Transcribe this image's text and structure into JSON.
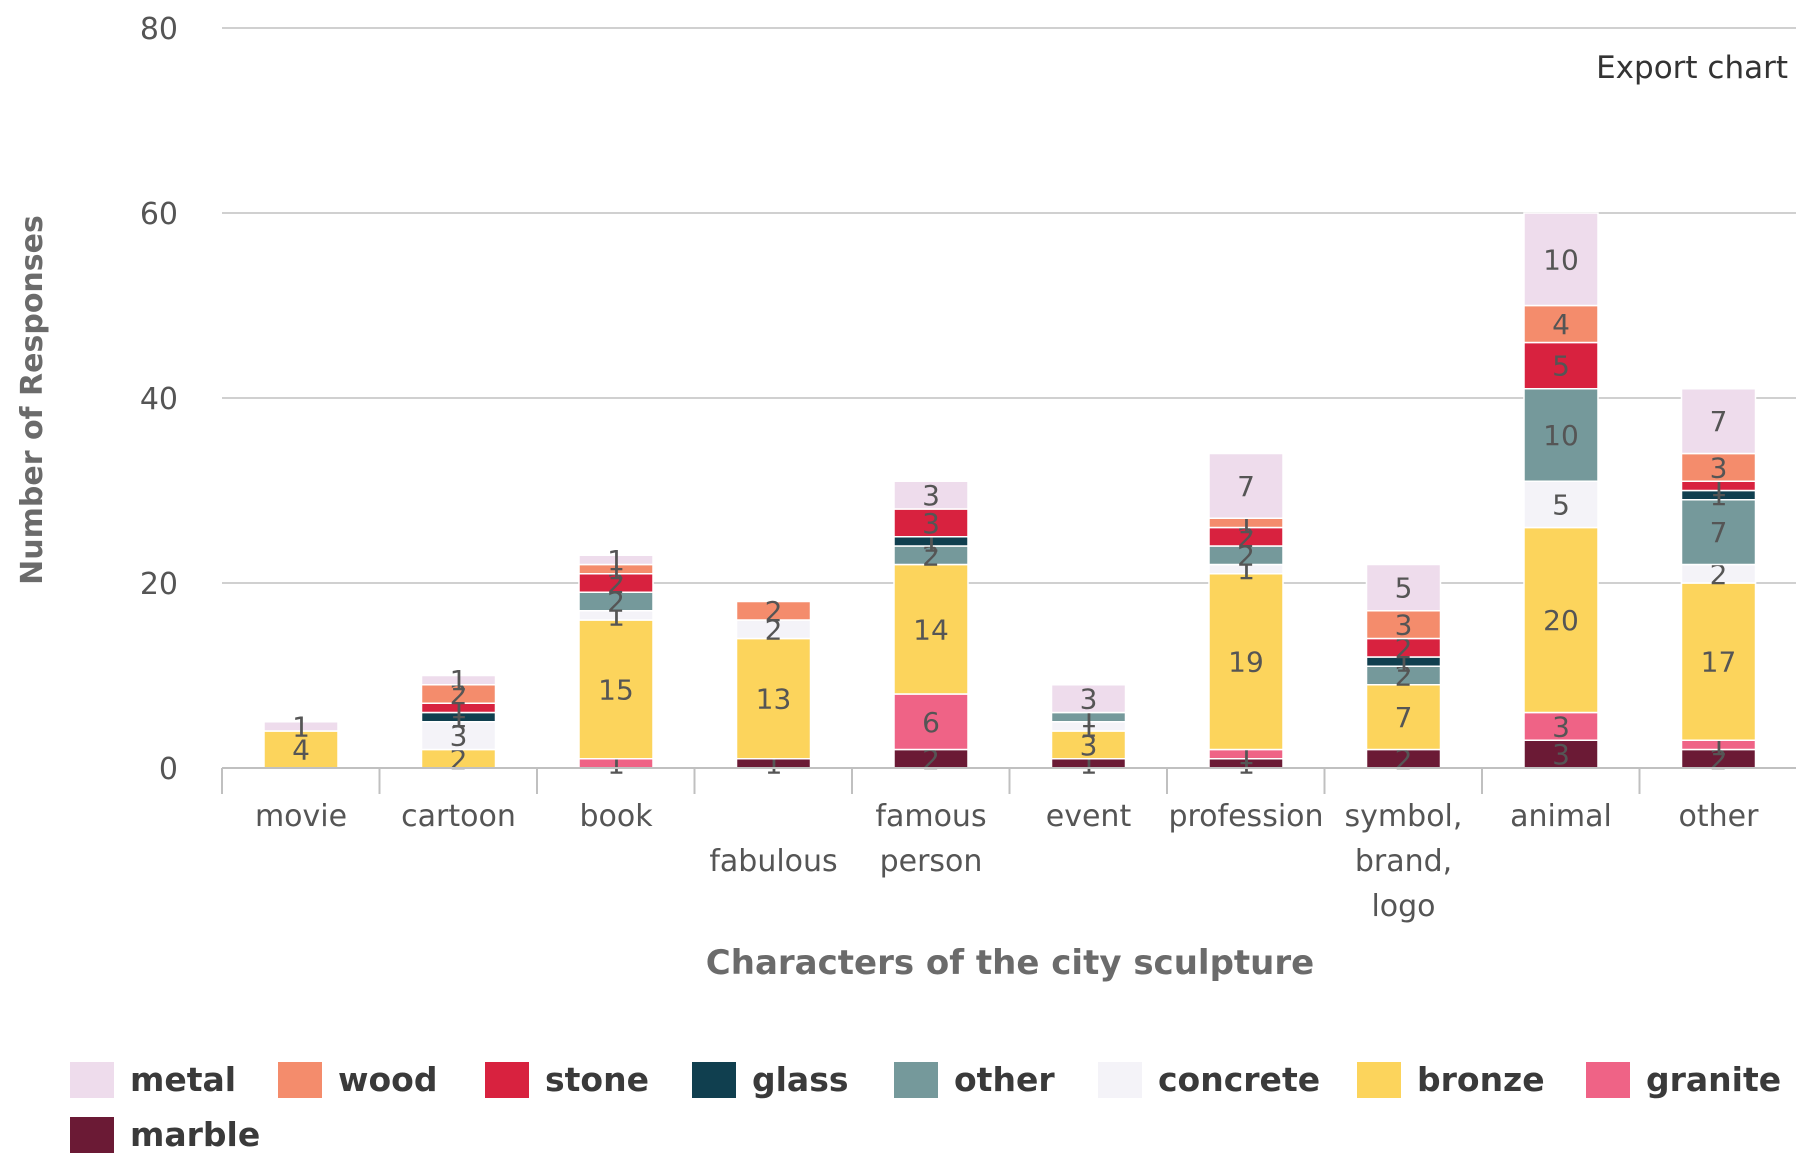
{
  "toolbar": {
    "export_label": "Export chart"
  },
  "chart_data": {
    "type": "bar",
    "stacked": true,
    "title": "",
    "xlabel": "Characters of the city sculpture",
    "ylabel": "Number of Responses",
    "ylim": [
      0,
      80
    ],
    "yticks": [
      0,
      20,
      40,
      60,
      80
    ],
    "grid": true,
    "legend_position": "bottom",
    "categories": [
      [
        "movie"
      ],
      [
        "cartoon"
      ],
      [
        "book"
      ],
      [
        "",
        "fabulous"
      ],
      [
        "famous",
        "person"
      ],
      [
        "event"
      ],
      [
        "profession"
      ],
      [
        "symbol,",
        "brand,",
        "logo"
      ],
      [
        "animal"
      ],
      [
        "other"
      ]
    ],
    "series": [
      {
        "name": "marble",
        "color": "#6b1a35",
        "values": [
          0,
          0,
          0,
          1,
          2,
          1,
          1,
          2,
          3,
          2
        ]
      },
      {
        "name": "granite",
        "color": "#ef6386",
        "values": [
          0,
          0,
          1,
          0,
          6,
          0,
          1,
          0,
          3,
          1
        ]
      },
      {
        "name": "bronze",
        "color": "#fcd45c",
        "values": [
          4,
          2,
          15,
          13,
          14,
          3,
          19,
          7,
          20,
          17
        ]
      },
      {
        "name": "concrete",
        "color": "#f4f3f8",
        "values": [
          0,
          3,
          1,
          2,
          0,
          1,
          1,
          0,
          5,
          2
        ]
      },
      {
        "name": "other",
        "color": "#75999b",
        "values": [
          0,
          0,
          2,
          0,
          2,
          1,
          2,
          2,
          10,
          7
        ]
      },
      {
        "name": "glass",
        "color": "#103f4f",
        "values": [
          0,
          1,
          0,
          0,
          1,
          0,
          0,
          1,
          0,
          1
        ]
      },
      {
        "name": "stone",
        "color": "#d8223f",
        "values": [
          0,
          1,
          2,
          0,
          3,
          0,
          2,
          2,
          5,
          1
        ]
      },
      {
        "name": "wood",
        "color": "#f48c6c",
        "values": [
          0,
          2,
          1,
          2,
          0,
          0,
          1,
          3,
          4,
          3
        ]
      },
      {
        "name": "metal",
        "color": "#eedcec",
        "values": [
          1,
          1,
          1,
          0,
          3,
          3,
          7,
          5,
          10,
          7
        ]
      }
    ],
    "legend_order": [
      "metal",
      "wood",
      "stone",
      "glass",
      "other",
      "concrete",
      "bronze",
      "granite",
      "marble"
    ]
  }
}
